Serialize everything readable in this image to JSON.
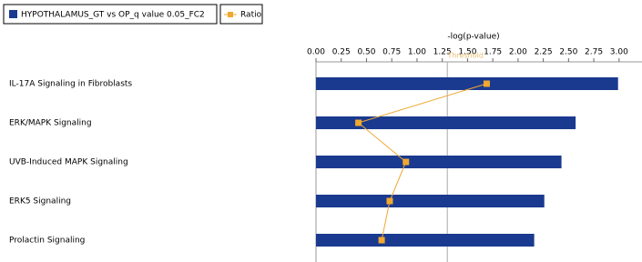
{
  "chart_data": {
    "type": "hbar-line",
    "x_label": "-log(p-value)",
    "threshold": 1.3,
    "threshold_label": "Threshold",
    "categories": [
      "IL-17A Signaling in Fibroblasts",
      "ERK/MAPK Signaling",
      "UVB-Induced MAPK Signaling",
      "ERK5 Signaling",
      "Prolactin Signaling"
    ],
    "series": [
      {
        "name": "HYPOTHALAMUS_GT vs OP_q value 0.05_FC2",
        "color": "#1a3a8f",
        "values": [
          2.99,
          2.57,
          2.43,
          2.26,
          2.16
        ]
      },
      {
        "name": "Ratio",
        "color": "#f0a830",
        "values": [
          1.69,
          0.42,
          0.89,
          0.73,
          0.65
        ]
      }
    ],
    "xlim": [
      0,
      3.2
    ],
    "xticks": [
      {
        "value": 0,
        "label": "0.00"
      },
      {
        "value": 0.25,
        "label": "0.25"
      },
      {
        "value": 0.5,
        "label": "0.50"
      },
      {
        "value": 0.75,
        "label": "0.75"
      },
      {
        "value": 1,
        "label": "1.00"
      },
      {
        "value": 1.25,
        "label": "1.25"
      },
      {
        "value": 1.5,
        "label": "1.50"
      },
      {
        "value": 1.75,
        "label": "1.75"
      },
      {
        "value": 2,
        "label": "2.00"
      },
      {
        "value": 2.25,
        "label": "2.25"
      },
      {
        "value": 2.5,
        "label": "2.50"
      },
      {
        "value": 2.75,
        "label": "2.75"
      },
      {
        "value": 3,
        "label": "3.00"
      }
    ]
  }
}
